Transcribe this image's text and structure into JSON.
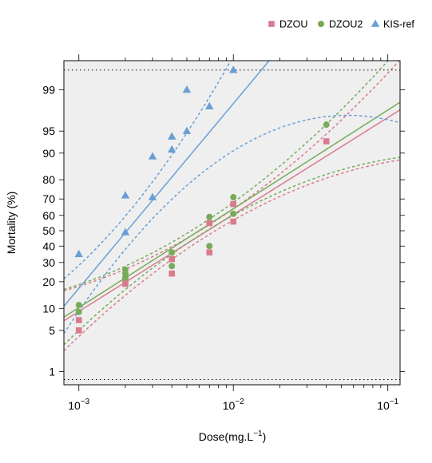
{
  "chart_data": {
    "type": "scatter",
    "title": "",
    "xlabel": "Dose(mg.L",
    "xlabel_sup": "−1",
    "xlabel_close": ")",
    "ylabel": "Mortality (%)",
    "x_scale": "log",
    "y_scale": "probit",
    "xlim": [
      0.0008,
      0.12
    ],
    "ylim_percent": [
      0.55,
      99.75
    ],
    "grid": false,
    "legend_position": "top-right",
    "x_tick_labels": [
      {
        "base": "10",
        "exp": "−3",
        "value": 0.001
      },
      {
        "base": "10",
        "exp": "−2",
        "value": 0.01
      },
      {
        "base": "10",
        "exp": "−1",
        "value": 0.1
      }
    ],
    "x_minor_ticks": [
      0.002,
      0.003,
      0.004,
      0.005,
      0.006,
      0.007,
      0.008,
      0.009,
      0.02,
      0.03,
      0.04,
      0.05,
      0.06,
      0.07,
      0.08,
      0.09
    ],
    "y_tick_labels": [
      "1",
      "5",
      "10",
      "20",
      "30",
      "40",
      "50",
      "60",
      "70",
      "80",
      "90",
      "95",
      "99"
    ],
    "y_tick_values": [
      1,
      5,
      10,
      20,
      30,
      40,
      50,
      60,
      70,
      80,
      90,
      95,
      99
    ],
    "reference_lines_percent": [
      0.7,
      99.6
    ],
    "series": [
      {
        "name": "DZOU",
        "color": "#d97b8c",
        "marker": "square",
        "points": [
          {
            "x": 0.001,
            "y": 5
          },
          {
            "x": 0.001,
            "y": 7
          },
          {
            "x": 0.002,
            "y": 19
          },
          {
            "x": 0.002,
            "y": 21
          },
          {
            "x": 0.004,
            "y": 24
          },
          {
            "x": 0.004,
            "y": 32
          },
          {
            "x": 0.007,
            "y": 36
          },
          {
            "x": 0.007,
            "y": 55
          },
          {
            "x": 0.01,
            "y": 56
          },
          {
            "x": 0.01,
            "y": 67
          },
          {
            "x": 0.04,
            "y": 93
          }
        ],
        "fit": {
          "x_at_50": 0.0068,
          "slope_probits_per_decade": 1.6,
          "ci_half_width_at_center": 0.05,
          "ci_spread": 0.3
        }
      },
      {
        "name": "DZOU2",
        "color": "#79aa5a",
        "marker": "circle",
        "points": [
          {
            "x": 0.001,
            "y": 9
          },
          {
            "x": 0.001,
            "y": 11
          },
          {
            "x": 0.002,
            "y": 22
          },
          {
            "x": 0.002,
            "y": 24
          },
          {
            "x": 0.002,
            "y": 26
          },
          {
            "x": 0.004,
            "y": 28
          },
          {
            "x": 0.004,
            "y": 36
          },
          {
            "x": 0.007,
            "y": 40
          },
          {
            "x": 0.007,
            "y": 59
          },
          {
            "x": 0.01,
            "y": 61
          },
          {
            "x": 0.01,
            "y": 71
          },
          {
            "x": 0.04,
            "y": 96
          }
        ],
        "fit": {
          "x_at_50": 0.006,
          "slope_probits_per_decade": 1.63,
          "ci_half_width_at_center": 0.05,
          "ci_spread": 0.3
        }
      },
      {
        "name": "KIS-ref",
        "color": "#6a9fd6",
        "marker": "triangle",
        "points": [
          {
            "x": 0.001,
            "y": 35
          },
          {
            "x": 0.002,
            "y": 49
          },
          {
            "x": 0.002,
            "y": 72
          },
          {
            "x": 0.003,
            "y": 71
          },
          {
            "x": 0.003,
            "y": 89
          },
          {
            "x": 0.004,
            "y": 91
          },
          {
            "x": 0.004,
            "y": 94
          },
          {
            "x": 0.005,
            "y": 95
          },
          {
            "x": 0.005,
            "y": 99
          },
          {
            "x": 0.007,
            "y": 98
          },
          {
            "x": 0.01,
            "y": 99.6
          }
        ],
        "fit": {
          "x_at_50": 0.00205,
          "slope_probits_per_decade": 3.05,
          "ci_half_width_at_center": 0.09,
          "ci_spread": 0.35
        }
      }
    ]
  }
}
